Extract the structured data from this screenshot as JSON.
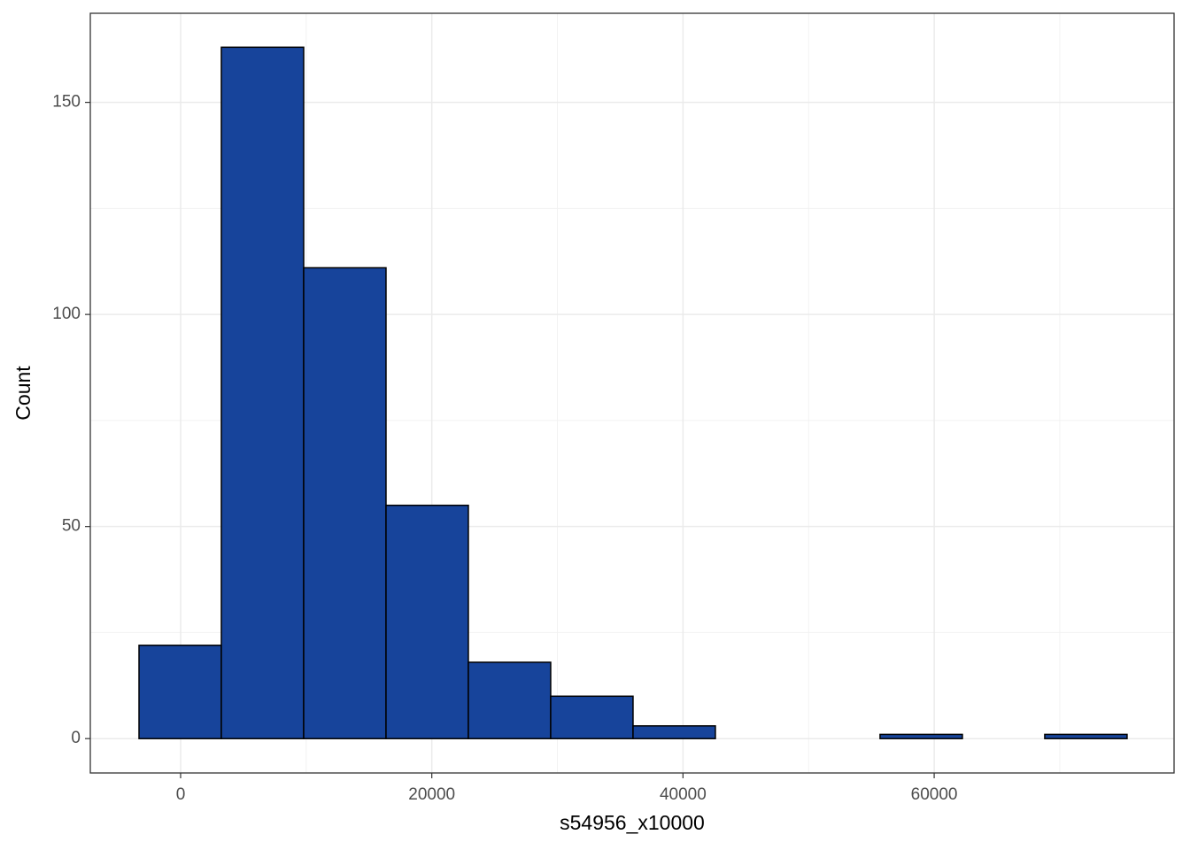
{
  "chart_data": {
    "type": "histogram",
    "x_label": "s54956_x10000",
    "y_label": "Count",
    "bins": [
      -3313,
      3243,
      9799,
      16355,
      22911,
      29467,
      36023,
      42579,
      49135,
      55691,
      62247,
      68803,
      75359
    ],
    "counts": [
      22,
      163,
      111,
      55,
      18,
      10,
      3,
      0,
      0,
      1,
      0,
      1
    ],
    "color": "#17449b",
    "edge_color": "#000000",
    "xlim": [
      -7190,
      79100
    ],
    "ylim": [
      -8.1,
      171
    ],
    "xticks": [
      0,
      20000,
      40000,
      60000
    ],
    "yticks": [
      0,
      50,
      100,
      150
    ],
    "minor_xticks": [
      10000,
      30000,
      50000,
      70000
    ],
    "minor_yticks": [
      25,
      75,
      125
    ],
    "grid": true
  }
}
